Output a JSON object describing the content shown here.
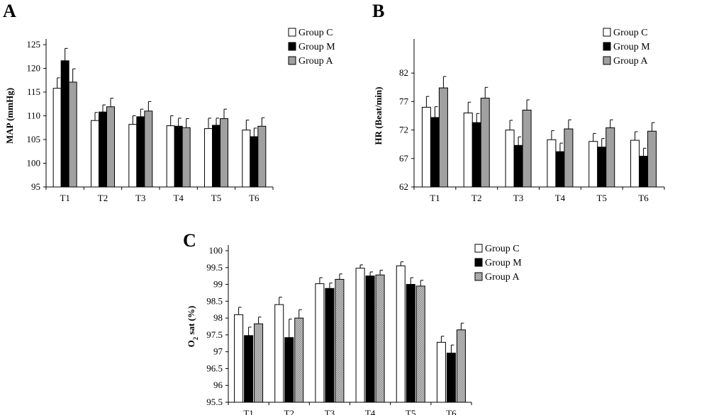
{
  "figure": {
    "charts": [
      "A",
      "B",
      "C"
    ]
  },
  "colors": {
    "group_c": "#ffffff",
    "group_m": "#000000",
    "group_a": "#a0a0a0",
    "axis": "#000000"
  },
  "chart_data": [
    {
      "panel": "A",
      "type": "bar",
      "ylabel": "MAP (mmHg)",
      "categories": [
        "T1",
        "T2",
        "T3",
        "T4",
        "T5",
        "T6"
      ],
      "ylim": [
        95,
        125
      ],
      "yticks": [
        "95",
        "100",
        "105",
        "110",
        "115",
        "120",
        "125"
      ],
      "legend": [
        "Group C",
        "Group M",
        "Group A"
      ],
      "legend_position": "top-right",
      "series": [
        {
          "name": "Group C",
          "values": [
            115.8,
            109.0,
            108.2,
            107.9,
            107.3,
            107.0
          ],
          "errors": [
            2.2,
            1.7,
            1.8,
            2.1,
            2.2,
            2.1
          ]
        },
        {
          "name": "Group M",
          "values": [
            121.6,
            110.8,
            109.8,
            107.8,
            108.0,
            105.6
          ],
          "errors": [
            2.6,
            1.5,
            1.6,
            1.7,
            1.5,
            1.8
          ]
        },
        {
          "name": "Group A",
          "values": [
            117.1,
            111.9,
            111.0,
            107.5,
            109.4,
            107.8
          ],
          "errors": [
            2.8,
            1.8,
            2.0,
            1.9,
            2.0,
            1.8
          ]
        }
      ]
    },
    {
      "panel": "B",
      "type": "bar",
      "ylabel": "HR (Beat/min)",
      "categories": [
        "T1",
        "T2",
        "T3",
        "T4",
        "T5",
        "T6"
      ],
      "ylim": [
        62,
        87
      ],
      "yticks": [
        "62",
        "67",
        "72",
        "77",
        "82"
      ],
      "legend": [
        "Group C",
        "Group M",
        "Group A"
      ],
      "legend_position": "top-right",
      "series": [
        {
          "name": "Group C",
          "values": [
            76.0,
            75.0,
            72.0,
            70.3,
            70.0,
            70.2
          ],
          "errors": [
            1.9,
            1.9,
            1.7,
            1.6,
            1.4,
            1.5
          ]
        },
        {
          "name": "Group M",
          "values": [
            74.2,
            73.3,
            69.3,
            68.2,
            69.0,
            67.4
          ],
          "errors": [
            1.9,
            1.6,
            1.5,
            1.5,
            1.5,
            1.4
          ]
        },
        {
          "name": "Group A",
          "values": [
            79.4,
            77.6,
            75.5,
            72.2,
            72.4,
            71.8
          ],
          "errors": [
            2.0,
            1.9,
            1.8,
            1.6,
            1.4,
            1.5
          ]
        }
      ]
    },
    {
      "panel": "C",
      "type": "bar",
      "ylabel_main": "O",
      "ylabel_sub": "2",
      "ylabel_rest": " sat (%)",
      "categories": [
        "T1",
        "T2",
        "T3",
        "T4",
        "T5",
        "T6"
      ],
      "ylim": [
        95.5,
        100
      ],
      "yticks": [
        "95.5",
        "96",
        "96.5",
        "97",
        "97.5",
        "98",
        "98.5",
        "99",
        "99.5",
        "100"
      ],
      "legend": [
        "Group C",
        "Group M",
        "Group A"
      ],
      "legend_position": "top-right",
      "series": [
        {
          "name": "Group C",
          "values": [
            98.1,
            98.4,
            99.02,
            99.48,
            99.55,
            97.28
          ],
          "errors": [
            0.22,
            0.22,
            0.18,
            0.1,
            0.12,
            0.18
          ]
        },
        {
          "name": "Group M",
          "values": [
            97.48,
            97.42,
            98.88,
            99.25,
            99.0,
            96.96
          ],
          "errors": [
            0.25,
            0.55,
            0.16,
            0.12,
            0.2,
            0.24
          ]
        },
        {
          "name": "Group A",
          "values": [
            97.83,
            98.0,
            99.15,
            99.28,
            98.95,
            97.65
          ],
          "errors": [
            0.2,
            0.25,
            0.16,
            0.14,
            0.17,
            0.2
          ]
        }
      ]
    }
  ]
}
